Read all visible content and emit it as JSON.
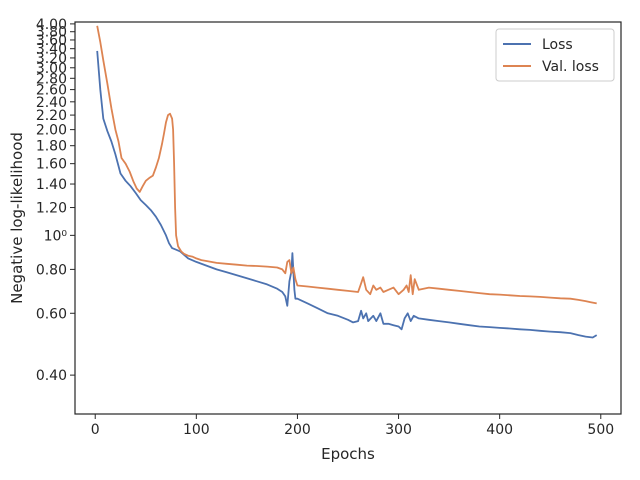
{
  "chart_data": {
    "type": "line",
    "xlabel": "Epochs",
    "ylabel": "Negative log-likelihood",
    "y_scale": "log",
    "xlim": [
      -20,
      520
    ],
    "ylim": [
      0.31,
      4.05
    ],
    "grid": false,
    "legend_position": "top-right",
    "x_ticks": [
      0,
      100,
      200,
      300,
      400,
      500
    ],
    "x_tick_labels": [
      "0",
      "100",
      "200",
      "300",
      "400",
      "500"
    ],
    "y_ticks": [
      0.4,
      0.6,
      0.8,
      1.0,
      1.2,
      1.4,
      1.6,
      1.8,
      2.0,
      2.2,
      2.4,
      2.6,
      2.8,
      3.0,
      3.2,
      3.4,
      3.6,
      3.8,
      4.0
    ],
    "y_tick_labels": [
      "0.40",
      "0.60",
      "0.80",
      "10⁰",
      "1.20",
      "1.40",
      "1.60",
      "1.80",
      "2.00",
      "2.20",
      "2.40",
      "2.60",
      "2.80",
      "3.00",
      "3.20",
      "3.40",
      "3.60",
      "3.80",
      "4.00"
    ],
    "series": [
      {
        "name": "Loss",
        "color": "#4c72b0",
        "points": [
          [
            2,
            3.35
          ],
          [
            5,
            2.6
          ],
          [
            8,
            2.15
          ],
          [
            12,
            1.98
          ],
          [
            16,
            1.85
          ],
          [
            20,
            1.7
          ],
          [
            25,
            1.5
          ],
          [
            30,
            1.43
          ],
          [
            35,
            1.38
          ],
          [
            40,
            1.32
          ],
          [
            45,
            1.26
          ],
          [
            50,
            1.22
          ],
          [
            55,
            1.18
          ],
          [
            60,
            1.13
          ],
          [
            65,
            1.07
          ],
          [
            70,
            1.0
          ],
          [
            73,
            0.95
          ],
          [
            76,
            0.92
          ],
          [
            80,
            0.91
          ],
          [
            84,
            0.9
          ],
          [
            88,
            0.88
          ],
          [
            92,
            0.86
          ],
          [
            100,
            0.84
          ],
          [
            110,
            0.82
          ],
          [
            120,
            0.8
          ],
          [
            130,
            0.785
          ],
          [
            140,
            0.77
          ],
          [
            150,
            0.755
          ],
          [
            160,
            0.74
          ],
          [
            170,
            0.725
          ],
          [
            180,
            0.705
          ],
          [
            185,
            0.69
          ],
          [
            188,
            0.67
          ],
          [
            190,
            0.63
          ],
          [
            192,
            0.74
          ],
          [
            194,
            0.79
          ],
          [
            195,
            0.89
          ],
          [
            197,
            0.7
          ],
          [
            198,
            0.66
          ],
          [
            200,
            0.66
          ],
          [
            210,
            0.64
          ],
          [
            220,
            0.62
          ],
          [
            230,
            0.6
          ],
          [
            240,
            0.59
          ],
          [
            250,
            0.575
          ],
          [
            255,
            0.565
          ],
          [
            260,
            0.57
          ],
          [
            263,
            0.61
          ],
          [
            265,
            0.58
          ],
          [
            268,
            0.6
          ],
          [
            270,
            0.57
          ],
          [
            275,
            0.59
          ],
          [
            278,
            0.57
          ],
          [
            282,
            0.6
          ],
          [
            285,
            0.56
          ],
          [
            290,
            0.56
          ],
          [
            295,
            0.555
          ],
          [
            300,
            0.55
          ],
          [
            303,
            0.54
          ],
          [
            306,
            0.58
          ],
          [
            309,
            0.6
          ],
          [
            312,
            0.57
          ],
          [
            315,
            0.59
          ],
          [
            320,
            0.58
          ],
          [
            330,
            0.575
          ],
          [
            340,
            0.57
          ],
          [
            350,
            0.565
          ],
          [
            360,
            0.56
          ],
          [
            370,
            0.555
          ],
          [
            380,
            0.55
          ],
          [
            390,
            0.548
          ],
          [
            400,
            0.545
          ],
          [
            410,
            0.543
          ],
          [
            420,
            0.54
          ],
          [
            430,
            0.538
          ],
          [
            440,
            0.535
          ],
          [
            450,
            0.532
          ],
          [
            460,
            0.53
          ],
          [
            470,
            0.527
          ],
          [
            478,
            0.52
          ],
          [
            485,
            0.515
          ],
          [
            492,
            0.512
          ],
          [
            496,
            0.52
          ]
        ]
      },
      {
        "name": "Val. loss",
        "color": "#dd8452",
        "points": [
          [
            2,
            3.95
          ],
          [
            5,
            3.55
          ],
          [
            8,
            3.15
          ],
          [
            12,
            2.7
          ],
          [
            16,
            2.3
          ],
          [
            20,
            2.0
          ],
          [
            23,
            1.85
          ],
          [
            26,
            1.66
          ],
          [
            30,
            1.6
          ],
          [
            34,
            1.52
          ],
          [
            38,
            1.42
          ],
          [
            41,
            1.36
          ],
          [
            44,
            1.33
          ],
          [
            47,
            1.38
          ],
          [
            50,
            1.43
          ],
          [
            54,
            1.46
          ],
          [
            57,
            1.48
          ],
          [
            60,
            1.56
          ],
          [
            63,
            1.66
          ],
          [
            66,
            1.82
          ],
          [
            68,
            1.95
          ],
          [
            70,
            2.1
          ],
          [
            72,
            2.2
          ],
          [
            74,
            2.22
          ],
          [
            76,
            2.15
          ],
          [
            77,
            2.0
          ],
          [
            78,
            1.6
          ],
          [
            79,
            1.2
          ],
          [
            80,
            1.0
          ],
          [
            82,
            0.93
          ],
          [
            85,
            0.9
          ],
          [
            88,
            0.885
          ],
          [
            92,
            0.875
          ],
          [
            96,
            0.87
          ],
          [
            100,
            0.86
          ],
          [
            105,
            0.85
          ],
          [
            110,
            0.845
          ],
          [
            120,
            0.835
          ],
          [
            130,
            0.83
          ],
          [
            140,
            0.825
          ],
          [
            150,
            0.82
          ],
          [
            160,
            0.818
          ],
          [
            170,
            0.815
          ],
          [
            180,
            0.81
          ],
          [
            185,
            0.8
          ],
          [
            188,
            0.78
          ],
          [
            190,
            0.84
          ],
          [
            192,
            0.85
          ],
          [
            194,
            0.78
          ],
          [
            196,
            0.81
          ],
          [
            198,
            0.75
          ],
          [
            200,
            0.72
          ],
          [
            210,
            0.715
          ],
          [
            220,
            0.71
          ],
          [
            230,
            0.705
          ],
          [
            240,
            0.7
          ],
          [
            250,
            0.695
          ],
          [
            260,
            0.69
          ],
          [
            263,
            0.73
          ],
          [
            265,
            0.76
          ],
          [
            268,
            0.7
          ],
          [
            272,
            0.68
          ],
          [
            275,
            0.72
          ],
          [
            278,
            0.7
          ],
          [
            282,
            0.71
          ],
          [
            285,
            0.69
          ],
          [
            290,
            0.7
          ],
          [
            295,
            0.71
          ],
          [
            300,
            0.68
          ],
          [
            305,
            0.7
          ],
          [
            308,
            0.72
          ],
          [
            310,
            0.69
          ],
          [
            312,
            0.77
          ],
          [
            314,
            0.68
          ],
          [
            316,
            0.75
          ],
          [
            320,
            0.7
          ],
          [
            330,
            0.71
          ],
          [
            340,
            0.705
          ],
          [
            350,
            0.7
          ],
          [
            360,
            0.695
          ],
          [
            370,
            0.69
          ],
          [
            380,
            0.685
          ],
          [
            390,
            0.68
          ],
          [
            400,
            0.678
          ],
          [
            410,
            0.675
          ],
          [
            420,
            0.672
          ],
          [
            430,
            0.67
          ],
          [
            440,
            0.668
          ],
          [
            450,
            0.665
          ],
          [
            460,
            0.662
          ],
          [
            470,
            0.66
          ],
          [
            478,
            0.655
          ],
          [
            485,
            0.65
          ],
          [
            490,
            0.645
          ],
          [
            496,
            0.64
          ]
        ]
      }
    ]
  }
}
